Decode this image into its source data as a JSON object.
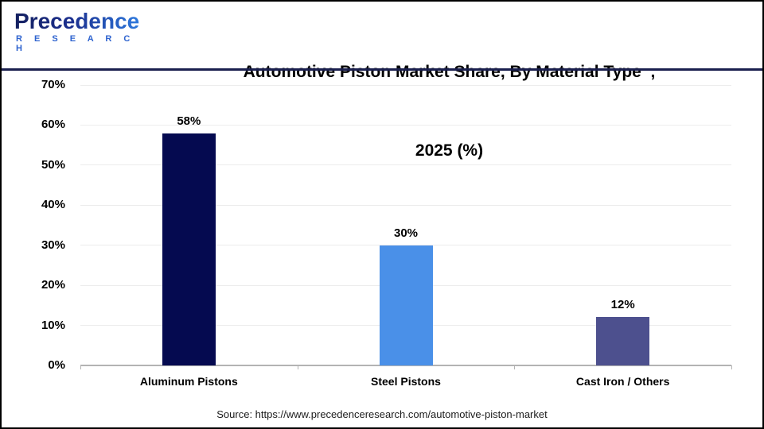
{
  "header": {
    "logo": {
      "brand": "Precedence",
      "sub": "R E S E A R C H"
    },
    "title_line1": "Automotive Piston Market Share, By Material Type  ,",
    "title_line2": "2025 (%)"
  },
  "chart_data": {
    "type": "bar",
    "title": "Automotive Piston Market Share, By Material Type, 2025 (%)",
    "categories": [
      "Aluminum Pistons",
      "Steel Pistons",
      "Cast Iron / Others"
    ],
    "values": [
      58,
      30,
      12
    ],
    "value_labels": [
      "58%",
      "30%",
      "12%"
    ],
    "bar_colors": [
      "#050a50",
      "#4a90e8",
      "#4d508e"
    ],
    "xlabel": "",
    "ylabel": "",
    "ylim": [
      0,
      70
    ],
    "ytick_labels": [
      "70%",
      "60%",
      "50%",
      "40%",
      "30%",
      "20%",
      "10%",
      "0%"
    ],
    "grid": true,
    "legend": "none",
    "gridline_color": "#ececec",
    "axis_line_color": "#b3b3b3"
  },
  "footer": {
    "source": "Source: https://www.precedenceresearch.com/automotive-piston-market"
  },
  "colors": {
    "header_separator": "#1a1f4e",
    "frame_border": "#000000",
    "background": "#ffffff",
    "logo_dark_blue": "#14205f",
    "logo_light_blue": "#2f7ce0",
    "logo_sub_blue": "#2e63cf"
  }
}
